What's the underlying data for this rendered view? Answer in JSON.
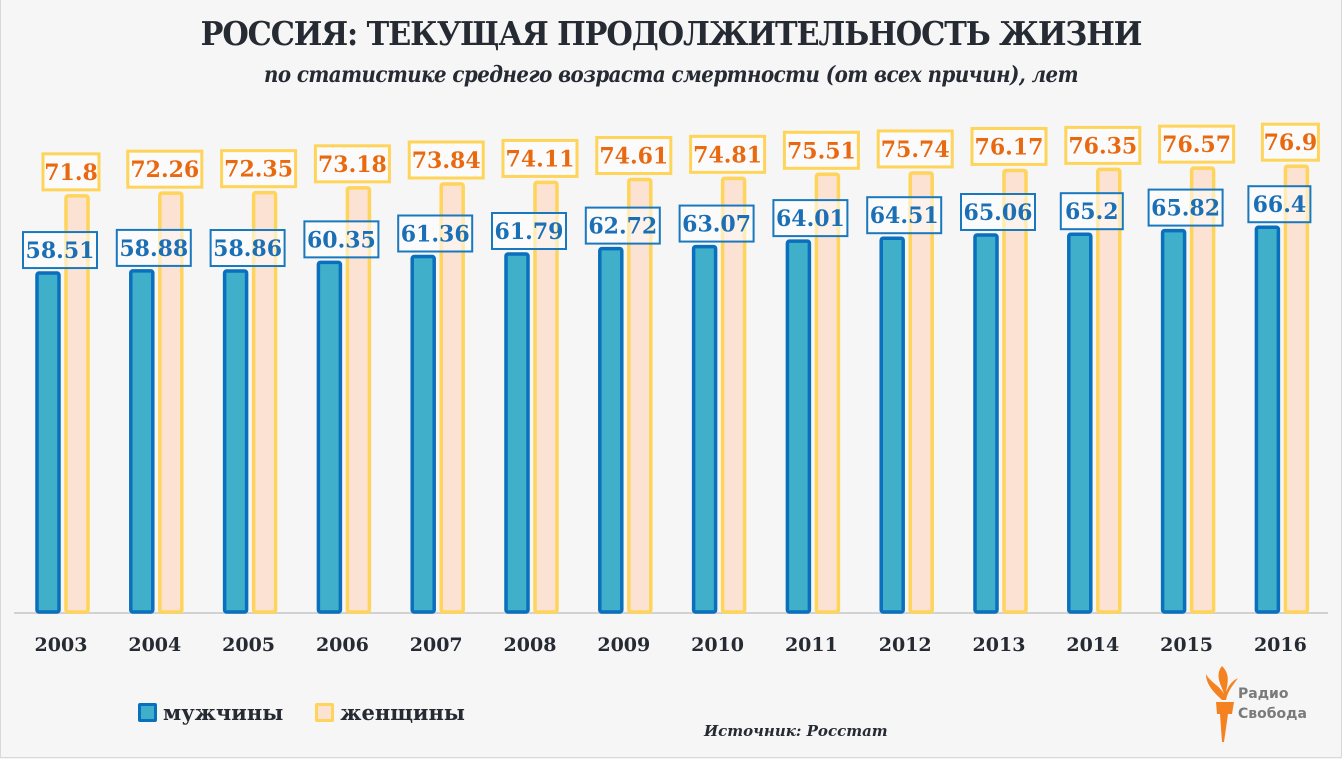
{
  "chart_data": {
    "type": "bar",
    "title": "РОССИЯ: ТЕКУЩАЯ ПРОДОЛЖИТЕЛЬНОСТЬ ЖИЗНИ",
    "subtitle": "по статистике среднего возраста смертности (от всех причин), лет",
    "xlabel": "",
    "ylabel": "",
    "ylim": [
      0,
      76.9
    ],
    "grid": false,
    "legend_position": "bottom-left",
    "categories": [
      "2003",
      "2004",
      "2005",
      "2006",
      "2007",
      "2008",
      "2009",
      "2010",
      "2011",
      "2012",
      "2013",
      "2014",
      "2015",
      "2016"
    ],
    "series": [
      {
        "name": "мужчины",
        "fill": "#3fafca",
        "stroke": "#0a6fbd",
        "label_color": "#1a6fb5",
        "values": [
          58.51,
          58.88,
          58.86,
          60.35,
          61.36,
          61.79,
          62.72,
          63.07,
          64.01,
          64.51,
          65.06,
          65.2,
          65.82,
          66.4
        ],
        "labels": [
          "58.51",
          "58.88",
          "58.86",
          "60.35",
          "61.36",
          "61.79",
          "62.72",
          "63.07",
          "64.01",
          "64.51",
          "65.06",
          "65.2",
          "65.82",
          "66.4"
        ]
      },
      {
        "name": "женщины",
        "fill": "#fbe2d3",
        "stroke": "#ffd45a",
        "label_color": "#e8690f",
        "values": [
          71.8,
          72.26,
          72.35,
          73.18,
          73.84,
          74.11,
          74.61,
          74.81,
          75.51,
          75.74,
          76.17,
          76.35,
          76.57,
          76.9
        ],
        "labels": [
          "71.8",
          "72.26",
          "72.35",
          "73.18",
          "73.84",
          "74.11",
          "74.61",
          "74.81",
          "75.51",
          "75.74",
          "76.17",
          "76.35",
          "76.57",
          "76.9"
        ]
      }
    ],
    "source": "Источник: Росстат"
  },
  "logo": {
    "line1": "Радио",
    "line2": "Свобода"
  }
}
